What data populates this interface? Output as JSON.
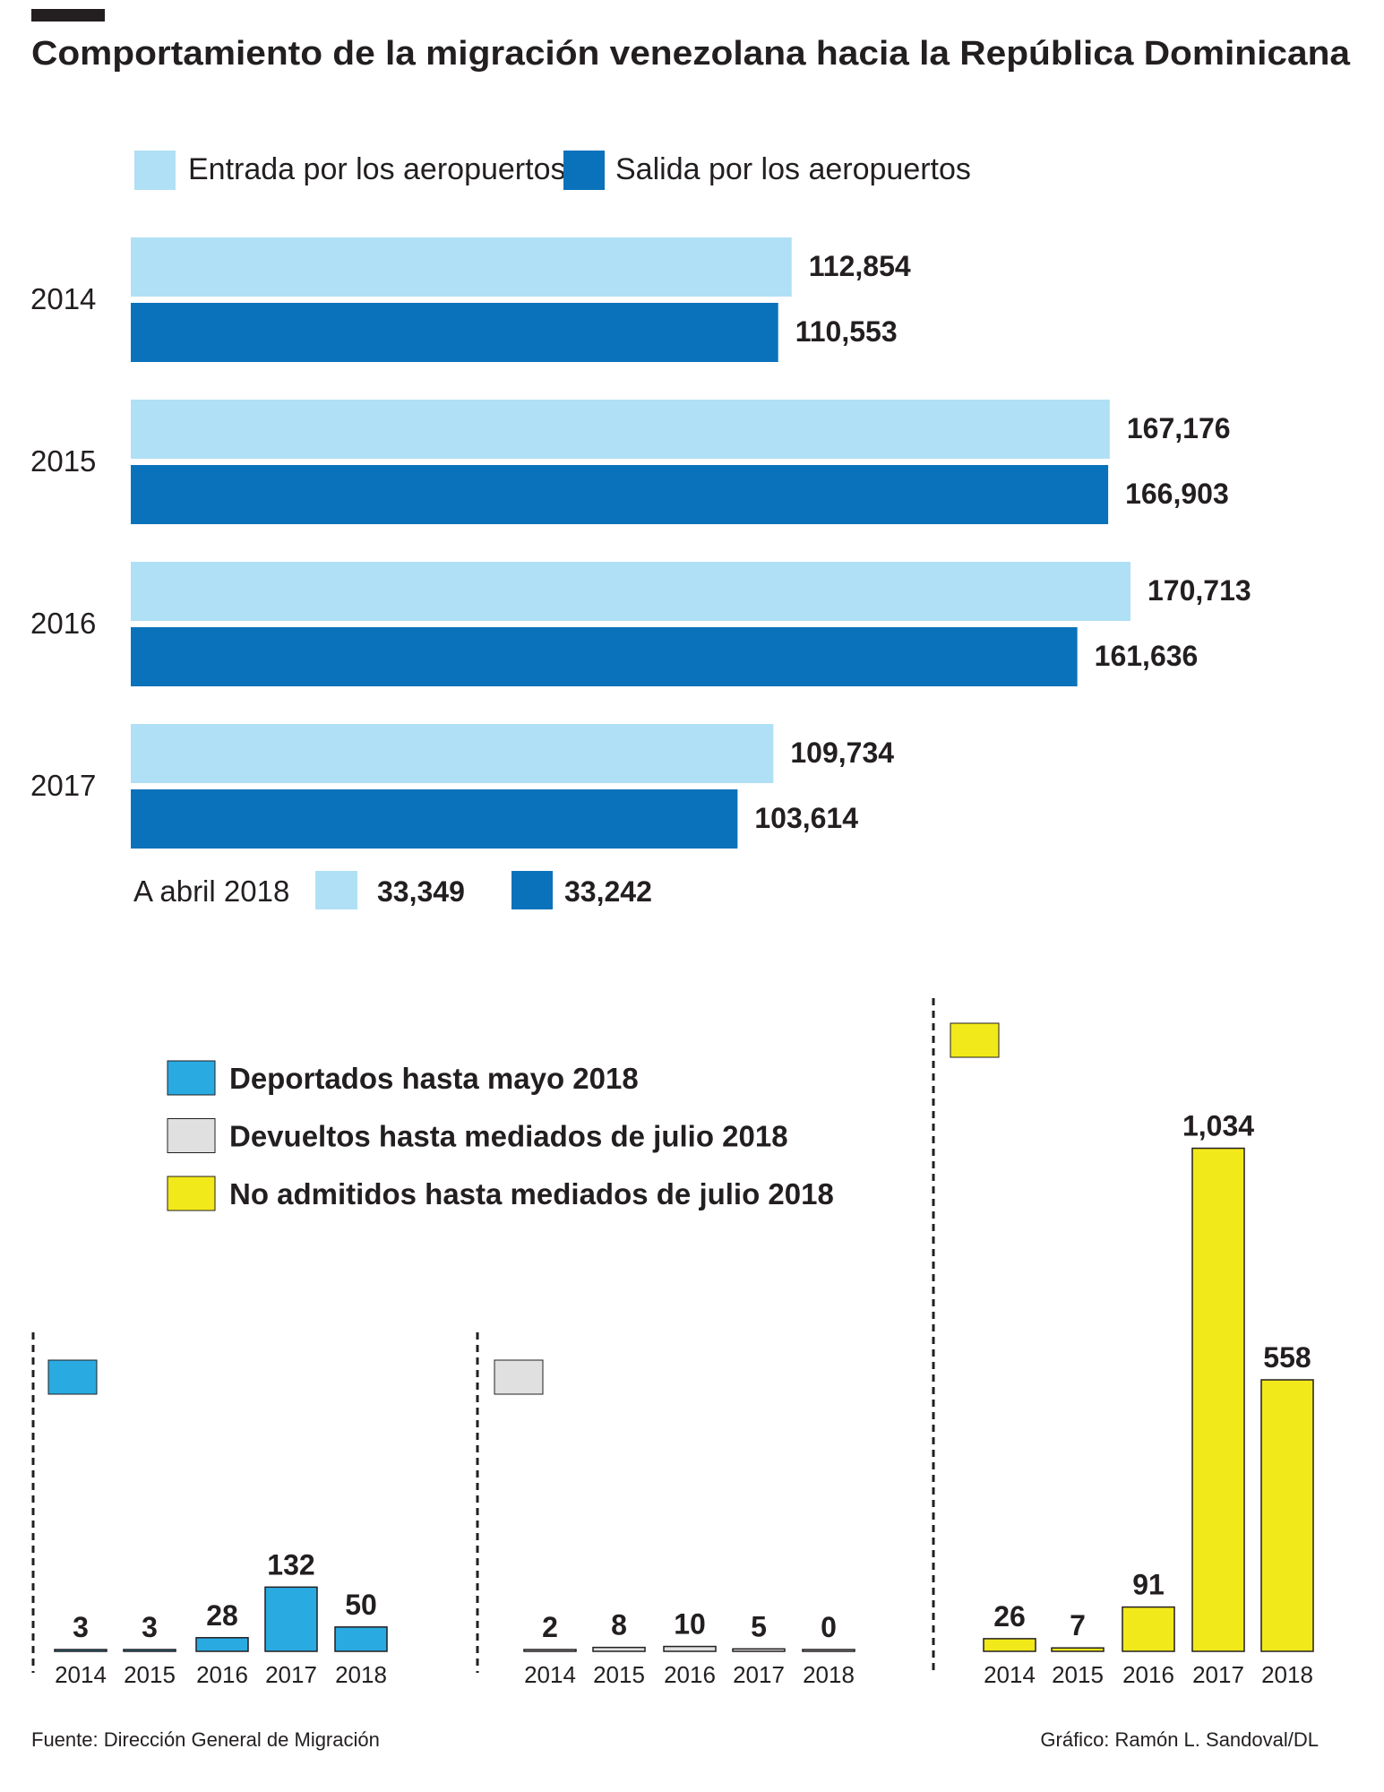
{
  "title": "Comportamiento de la migración venezolana hacia la República Dominicana",
  "colors": {
    "entrada": "#b0e0f5",
    "salida": "#0a72bb",
    "deportados": "#29abe2",
    "devueltos": "#e0e0e0",
    "no_admitidos": "#f2e91a",
    "text": "#231f20"
  },
  "chart_data": [
    {
      "type": "bar",
      "orientation": "horizontal",
      "categories": [
        "2014",
        "2015",
        "2016",
        "2017"
      ],
      "series": [
        {
          "name": "Entrada por los aeropuertos",
          "values": [
            112854,
            167176,
            170713,
            109734
          ],
          "labels": [
            "112,854",
            "167,176",
            "170,713",
            "109,734"
          ]
        },
        {
          "name": "Salida por los aeropuertos",
          "values": [
            110553,
            166903,
            161636,
            103614
          ],
          "labels": [
            "110,553",
            "166,903",
            "161,636",
            "103,614"
          ]
        }
      ],
      "note": {
        "label": "A abril 2018",
        "entrada": "33,349",
        "salida": "33,242"
      }
    },
    {
      "type": "bar",
      "legend": [
        "Deportados hasta mayo 2018",
        "Devueltos hasta mediados de julio 2018",
        "No admitidos hasta mediados de julio 2018"
      ],
      "panels": [
        {
          "series": "Deportados hasta mayo 2018",
          "categories": [
            "2014",
            "2015",
            "2016",
            "2017",
            "2018"
          ],
          "values": [
            3,
            3,
            28,
            132,
            50
          ]
        },
        {
          "series": "Devueltos hasta mediados de julio 2018",
          "categories": [
            "2014",
            "2015",
            "2016",
            "2017",
            "2018"
          ],
          "values": [
            2,
            8,
            10,
            5,
            0
          ]
        },
        {
          "series": "No admitidos hasta mediados de julio 2018",
          "categories": [
            "2014",
            "2015",
            "2016",
            "2017",
            "2018"
          ],
          "values": [
            26,
            7,
            91,
            1034,
            558
          ],
          "labels": [
            "26",
            "7",
            "91",
            "1,034",
            "558"
          ]
        }
      ]
    }
  ],
  "footer": {
    "source": "Fuente: Dirección General de Migración",
    "credit": "Gráfico: Ramón L. Sandoval/DL"
  }
}
